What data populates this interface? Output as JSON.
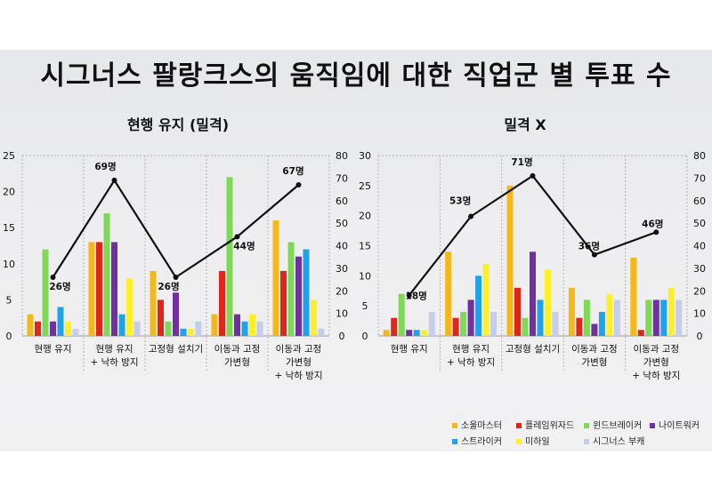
{
  "title": "시그너스 팔랑크스의 움직임에 대한 직업군 별 투표 수",
  "chart_data": [
    {
      "type": "bar",
      "title": "현행 유지 (밀격)",
      "categories": [
        "현행 유지",
        "현행 유지\n+ 낙하 방지",
        "고정형 설치기",
        "이동과 고정\n가변형",
        "이동과 고정\n가변형\n+ 낙하 방지"
      ],
      "ylim": [
        0,
        25
      ],
      "y2lim": [
        0,
        80
      ],
      "yticks": [
        0,
        5,
        10,
        15,
        20,
        25
      ],
      "y2ticks": [
        0,
        10,
        20,
        30,
        40,
        50,
        60,
        70,
        80
      ],
      "series": [
        {
          "name": "소울마스터",
          "color": "#f5b81a",
          "values": [
            3,
            13,
            9,
            3,
            16
          ]
        },
        {
          "name": "플레임위자드",
          "color": "#e0261c",
          "values": [
            2,
            13,
            5,
            9,
            9
          ]
        },
        {
          "name": "윈드브레이커",
          "color": "#7ed957",
          "values": [
            12,
            17,
            2,
            22,
            13
          ]
        },
        {
          "name": "나이트워커",
          "color": "#7030a0",
          "values": [
            2,
            13,
            6,
            3,
            11
          ]
        },
        {
          "name": "스트라이커",
          "color": "#1ea3e8",
          "values": [
            4,
            3,
            1,
            2,
            12
          ]
        },
        {
          "name": "미하일",
          "color": "#ffef2a",
          "values": [
            2,
            8,
            1,
            3,
            5
          ]
        },
        {
          "name": "시그너스 부캐",
          "color": "#c6cde8",
          "values": [
            1,
            2,
            2,
            2,
            1
          ]
        }
      ],
      "totals": {
        "values": [
          26,
          69,
          26,
          44,
          67
        ],
        "labels": [
          "26명",
          "69명",
          "26명",
          "44명",
          "67명"
        ]
      }
    },
    {
      "type": "bar",
      "title": "밀격 X",
      "categories": [
        "현행 유지",
        "현행 유지\n+ 낙하 방지",
        "고정형 설치기",
        "이동과 고정\n가변형",
        "이동과 고정\n가변형\n+ 낙하 방지"
      ],
      "ylim": [
        0,
        30
      ],
      "y2lim": [
        0,
        80
      ],
      "yticks": [
        0,
        5,
        10,
        15,
        20,
        25,
        30
      ],
      "y2ticks": [
        0,
        10,
        20,
        30,
        40,
        50,
        60,
        70,
        80
      ],
      "series": [
        {
          "name": "소울마스터",
          "color": "#f5b81a",
          "values": [
            1,
            14,
            25,
            8,
            13
          ]
        },
        {
          "name": "플레임위자드",
          "color": "#e0261c",
          "values": [
            3,
            3,
            8,
            3,
            1
          ]
        },
        {
          "name": "윈드브레이커",
          "color": "#7ed957",
          "values": [
            7,
            4,
            3,
            6,
            6
          ]
        },
        {
          "name": "나이트워커",
          "color": "#7030a0",
          "values": [
            1,
            6,
            14,
            2,
            6
          ]
        },
        {
          "name": "스트라이커",
          "color": "#1ea3e8",
          "values": [
            1,
            10,
            6,
            4,
            6
          ]
        },
        {
          "name": "미하일",
          "color": "#ffef2a",
          "values": [
            1,
            12,
            11,
            7,
            8
          ]
        },
        {
          "name": "시그너스 부캐",
          "color": "#c6cde8",
          "values": [
            4,
            4,
            4,
            6,
            6
          ]
        }
      ],
      "totals": {
        "values": [
          18,
          53,
          71,
          36,
          46
        ],
        "labels": [
          "18명",
          "53명",
          "71명",
          "36명",
          "46명"
        ]
      }
    }
  ]
}
